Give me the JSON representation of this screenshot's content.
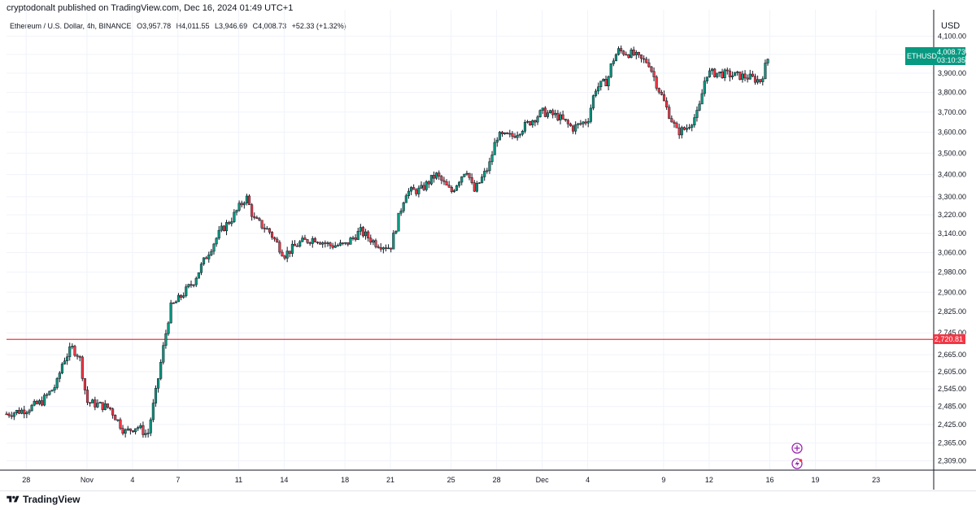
{
  "header": {
    "published": "cryptodonalt published on TradingView.com, Dec 16, 2024 01:49 UTC+1",
    "symbol": "Ethereum / U.S. Dollar, 4h, BINANCE",
    "open": "O3,957.78",
    "high": "H4,011.55",
    "low": "L3,946.69",
    "close": "C4,008.73",
    "change": "+52.33 (+1.32%)"
  },
  "axis": {
    "currency": "USD",
    "ticker": "ETHUSD",
    "last_price": "4,008.73",
    "countdown": "03:10:35",
    "hline_price": "2,720.81"
  },
  "footer": {
    "brand": "TradingView"
  },
  "colors": {
    "up": "#089981",
    "down": "#f23645",
    "hline": "#f23645",
    "grid": "#f0f3fa",
    "axis": "#131722",
    "icon": "#9c27b0"
  },
  "icons": [
    "plus-icon",
    "lightning-icon"
  ],
  "chart_data": {
    "type": "candlestick",
    "title": "Ethereum / U.S. Dollar, 4h, BINANCE",
    "ylabel": "USD",
    "ylim": [
      2280,
      4120
    ],
    "scale": "log",
    "y_ticks": [
      4100,
      4000,
      3900,
      3800,
      3700,
      3600,
      3500,
      3400,
      3300,
      3220,
      3140,
      3060,
      2980,
      2900,
      2825,
      2745,
      2665,
      2605,
      2545,
      2485,
      2425,
      2365,
      2309
    ],
    "y_tick_labels": [
      "4,100.00",
      "4,000.00",
      "3,900.00",
      "3,800.00",
      "3,700.00",
      "3,600.00",
      "3,500.00",
      "3,400.00",
      "3,300.00",
      "3,220.00",
      "3,140.00",
      "3,060.00",
      "2,980.00",
      "2,900.00",
      "2,825.00",
      "2,745.00",
      "2,665.00",
      "2,605.00",
      "2,545.00",
      "2,485.00",
      "2,425.00",
      "2,365.00",
      "2,309.00"
    ],
    "x_ticks": [
      {
        "label": "28",
        "day": 0
      },
      {
        "label": "Nov",
        "day": 4
      },
      {
        "label": "4",
        "day": 7
      },
      {
        "label": "7",
        "day": 10
      },
      {
        "label": "11",
        "day": 14
      },
      {
        "label": "14",
        "day": 17
      },
      {
        "label": "18",
        "day": 21
      },
      {
        "label": "21",
        "day": 24
      },
      {
        "label": "25",
        "day": 28
      },
      {
        "label": "28",
        "day": 31
      },
      {
        "label": "Dec",
        "day": 34
      },
      {
        "label": "4",
        "day": 37
      },
      {
        "label": "9",
        "day": 42
      },
      {
        "label": "12",
        "day": 45
      },
      {
        "label": "16",
        "day": 49
      },
      {
        "label": "19",
        "day": 52
      },
      {
        "label": "23",
        "day": 56
      }
    ],
    "horizontal_line": 2720.81,
    "last_close": 4008.73,
    "close_path": [
      [
        -1.3,
        2460
      ],
      [
        0,
        2475
      ],
      [
        1,
        2500
      ],
      [
        2,
        2560
      ],
      [
        2.4,
        2640
      ],
      [
        3,
        2690
      ],
      [
        3.5,
        2660
      ],
      [
        4,
        2500
      ],
      [
        4.8,
        2490
      ],
      [
        5.5,
        2480
      ],
      [
        6.5,
        2400
      ],
      [
        7.3,
        2420
      ],
      [
        8,
        2390
      ],
      [
        8.6,
        2550
      ],
      [
        9,
        2680
      ],
      [
        9.5,
        2840
      ],
      [
        10,
        2870
      ],
      [
        11,
        2940
      ],
      [
        12,
        3060
      ],
      [
        12.8,
        3150
      ],
      [
        13.5,
        3200
      ],
      [
        14.5,
        3300
      ],
      [
        15,
        3200
      ],
      [
        16,
        3150
      ],
      [
        17,
        3050
      ],
      [
        18,
        3100
      ],
      [
        19,
        3120
      ],
      [
        20,
        3090
      ],
      [
        21,
        3090
      ],
      [
        22,
        3150
      ],
      [
        23,
        3100
      ],
      [
        24,
        3080
      ],
      [
        24.5,
        3200
      ],
      [
        25,
        3320
      ],
      [
        26,
        3330
      ],
      [
        27,
        3400
      ],
      [
        28,
        3320
      ],
      [
        29,
        3430
      ],
      [
        29.5,
        3320
      ],
      [
        30.5,
        3440
      ],
      [
        31,
        3580
      ],
      [
        32,
        3580
      ],
      [
        33,
        3640
      ],
      [
        34,
        3700
      ],
      [
        35,
        3680
      ],
      [
        36,
        3620
      ],
      [
        37,
        3660
      ],
      [
        37.5,
        3820
      ],
      [
        38.3,
        3860
      ],
      [
        38.6,
        3960
      ],
      [
        39,
        4020
      ],
      [
        40,
        4000
      ],
      [
        40.5,
        3970
      ],
      [
        41,
        3960
      ],
      [
        41.5,
        3850
      ],
      [
        42.3,
        3700
      ],
      [
        42.9,
        3600
      ],
      [
        43.5,
        3620
      ],
      [
        44.3,
        3700
      ],
      [
        44.8,
        3900
      ],
      [
        45.5,
        3900
      ],
      [
        46.5,
        3890
      ],
      [
        47.5,
        3880
      ],
      [
        48.4,
        3860
      ],
      [
        49,
        4008.73
      ]
    ]
  }
}
